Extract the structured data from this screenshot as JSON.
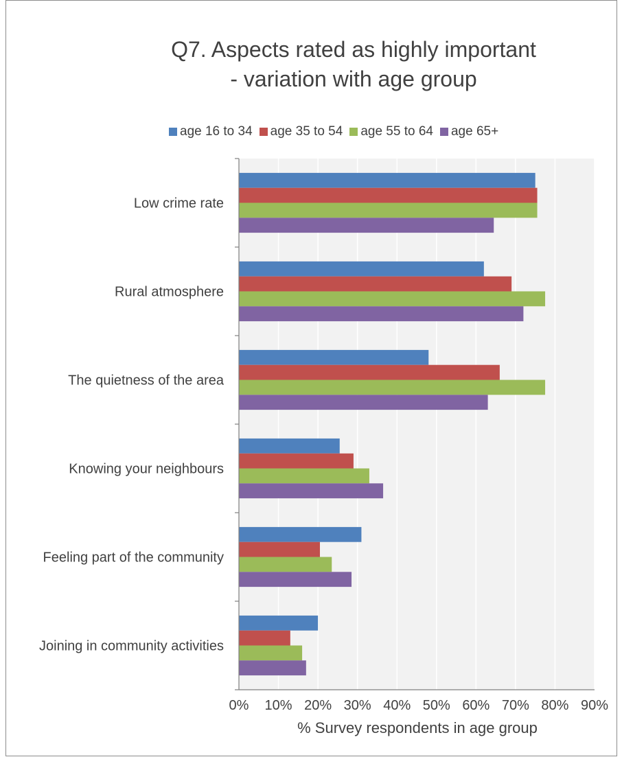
{
  "chart_data": {
    "type": "bar",
    "orientation": "horizontal",
    "title_lines": [
      "Q7. Aspects rated as highly important",
      "- variation with age group"
    ],
    "xlabel": "% Survey respondents in age group",
    "ylabel": "",
    "xlim": [
      0,
      90
    ],
    "x_ticks": [
      "0%",
      "10%",
      "20%",
      "30%",
      "40%",
      "50%",
      "60%",
      "70%",
      "80%",
      "90%"
    ],
    "grid": "vertical",
    "legend_position": "top",
    "categories": [
      "Low crime rate",
      "Rural atmosphere",
      "The quietness of the area",
      "Knowing your neighbours",
      "Feeling part of the community",
      "Joining in community activities"
    ],
    "series": [
      {
        "name": "age 16 to 34",
        "color": "#4f81bd",
        "values": [
          75,
          62,
          48,
          25.5,
          31,
          20
        ]
      },
      {
        "name": "age 35 to 54",
        "color": "#c0504d",
        "values": [
          75.5,
          69,
          66,
          29,
          20.5,
          13
        ]
      },
      {
        "name": "age 55 to 64",
        "color": "#9bbb59",
        "values": [
          75.5,
          77.5,
          77.5,
          33,
          23.5,
          16
        ]
      },
      {
        "name": "age 65+",
        "color": "#8064a2",
        "values": [
          64.5,
          72,
          63,
          36.5,
          28.5,
          17
        ]
      }
    ]
  }
}
